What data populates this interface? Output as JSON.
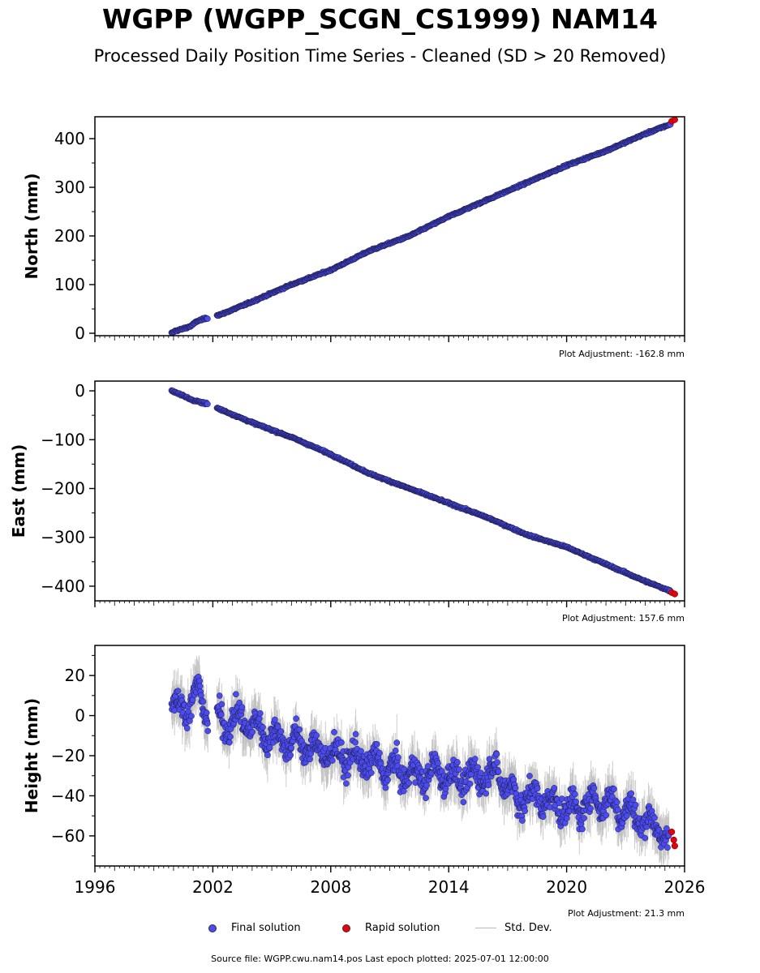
{
  "title": "WGPP (WGPP_SCGN_CS1999) NAM14",
  "subtitle": "Processed Daily Position Time Series - Cleaned (SD > 20 Removed)",
  "legend": {
    "final": "Final solution",
    "rapid": "Rapid solution",
    "std": "Std. Dev."
  },
  "footer": "Source file: WGPP.cwu.nam14.pos  Last epoch plotted: 2025-07-01 12:00:00",
  "colors": {
    "final": "#4b4bf0",
    "rapid": "#e8000b",
    "std": "#bbbbbb",
    "axes": "#000000"
  },
  "chart_data": [
    {
      "type": "scatter",
      "ylabel": "North (mm)",
      "adjustment": "Plot Adjustment: -162.8 mm",
      "xlim": [
        1996,
        2026
      ],
      "ylim": [
        -5,
        445
      ],
      "yticks": [
        0,
        100,
        200,
        300,
        400
      ],
      "xticks": [
        1996,
        2002,
        2008,
        2014,
        2020,
        2026
      ],
      "show_xtick_labels": false,
      "series": [
        {
          "name": "Final solution",
          "x": [
            1999.9,
            2000.1,
            2000.4,
            2000.9,
            2001.2,
            2001.6,
            2002.5,
            2004.0,
            2006.0,
            2008.0,
            2010.0,
            2012.0,
            2014.0,
            2016.0,
            2018.0,
            2020.0,
            2022.0,
            2024.0,
            2025.3
          ],
          "y": [
            0,
            5,
            8,
            15,
            25,
            30,
            40,
            65,
            100,
            130,
            170,
            200,
            240,
            275,
            310,
            345,
            375,
            410,
            430
          ]
        },
        {
          "name": "Rapid solution",
          "x": [
            2025.35,
            2025.5
          ],
          "y": [
            436,
            439
          ]
        }
      ]
    },
    {
      "type": "scatter",
      "ylabel": "East (mm)",
      "adjustment": "Plot Adjustment: 157.6 mm",
      "xlim": [
        1996,
        2026
      ],
      "ylim": [
        -430,
        20
      ],
      "yticks": [
        0,
        -100,
        -200,
        -300,
        -400
      ],
      "xticks": [
        1996,
        2002,
        2008,
        2014,
        2020,
        2026
      ],
      "show_xtick_labels": false,
      "series": [
        {
          "name": "Final solution",
          "x": [
            1999.9,
            2000.4,
            2001.0,
            2001.6,
            2002.5,
            2004.0,
            2006.0,
            2008.0,
            2010.0,
            2012.0,
            2014.0,
            2016.0,
            2018.0,
            2020.0,
            2022.0,
            2024.0,
            2025.3
          ],
          "y": [
            0,
            -8,
            -20,
            -25,
            -40,
            -65,
            -95,
            -130,
            -170,
            -200,
            -230,
            -260,
            -295,
            -320,
            -355,
            -390,
            -410
          ]
        },
        {
          "name": "Rapid solution",
          "x": [
            2025.35,
            2025.5
          ],
          "y": [
            -413,
            -416
          ]
        }
      ]
    },
    {
      "type": "scatter",
      "ylabel": "Height (mm)",
      "adjustment": "Plot Adjustment: 21.3 mm",
      "xlim": [
        1996,
        2026
      ],
      "ylim": [
        -75,
        35
      ],
      "yticks": [
        20,
        0,
        -20,
        -40,
        -60
      ],
      "xticks": [
        1996,
        2002,
        2008,
        2014,
        2020,
        2026
      ],
      "xtick_labels": [
        "1996",
        "2002",
        "2008",
        "2014",
        "2020",
        "2026"
      ],
      "show_xtick_labels": true,
      "series": [
        {
          "name": "Final solution",
          "x": [
            1999.9,
            2000.3,
            2000.7,
            2001.2,
            2001.7,
            2002.5,
            2003.5,
            2004.5,
            2005.5,
            2006.5,
            2007.5,
            2008.5,
            2009.5,
            2010.5,
            2011.5,
            2012.5,
            2013.5,
            2014.5,
            2015.5,
            2016.5,
            2017.5,
            2018.5,
            2019.5,
            2020.5,
            2021.5,
            2022.5,
            2023.5,
            2024.5,
            2025.2
          ],
          "y": [
            10,
            2,
            5,
            12,
            0,
            -3,
            -2,
            -8,
            -12,
            -14,
            -18,
            -20,
            -22,
            -25,
            -28,
            -30,
            -28,
            -32,
            -30,
            -28,
            -42,
            -40,
            -45,
            -47,
            -42,
            -45,
            -50,
            -55,
            -62
          ]
        },
        {
          "name": "Rapid solution",
          "x": [
            2025.35,
            2025.45,
            2025.5
          ],
          "y": [
            -58,
            -62,
            -65
          ]
        }
      ]
    }
  ]
}
